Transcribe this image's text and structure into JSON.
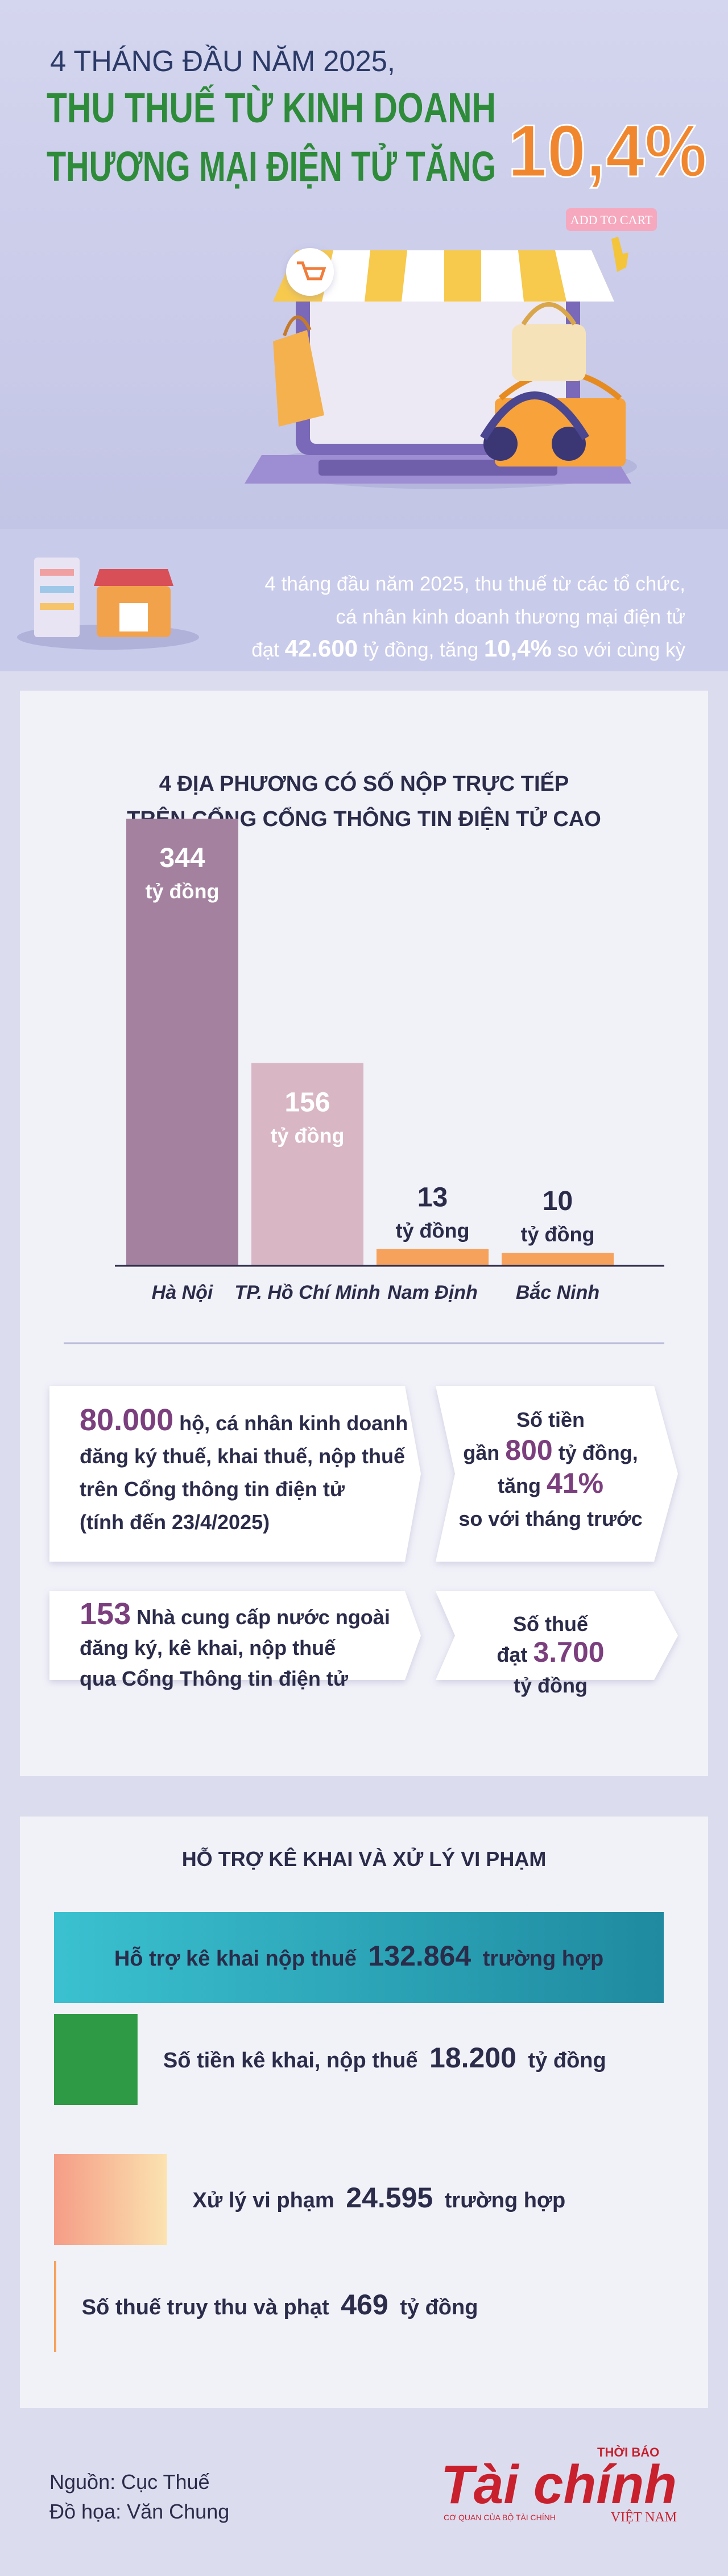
{
  "header": {
    "lines": [
      "4 THÁNG ĐẦU NĂM 2025,",
      "THU THUẾ TỪ KINH DOANH",
      "THƯƠNG MẠI ĐIỆN TỬ TĂNG"
    ],
    "highlight": "10,4%",
    "button": "ADD TO CART"
  },
  "intro": {
    "lines": [
      [
        {
          "text": "4 tháng đầu năm 2025, thu thuế từ các tổ chức,"
        }
      ],
      [
        {
          "text": "cá nhân kinh doanh thương mại điện tử"
        }
      ],
      [
        {
          "text": "đạt "
        },
        {
          "text": "42.600",
          "bold": true
        },
        {
          "text": " tỷ đồng, tăng "
        },
        {
          "text": "10,4%",
          "bold": true
        },
        {
          "text": " so với cùng kỳ"
        }
      ]
    ]
  },
  "chart_data": [
    {
      "type": "bar",
      "title": [
        "4 ĐỊA PHƯƠNG CÓ SỐ NỘP TRỰC TIẾP",
        "TRÊN CỔNG CỔNG THÔNG TIN ĐIỆN TỬ CAO"
      ],
      "categories": [
        "Hà Nội",
        "TP. Hồ Chí Minh",
        "Nam Định",
        "Bắc Ninh"
      ],
      "values": [
        344,
        156,
        13,
        10
      ],
      "unit": "tỷ đồng",
      "colors": [
        "#a4819f",
        "#d9b6c3",
        "#f6a15c",
        "#f6a15c"
      ]
    },
    {
      "type": "hbar",
      "title": "HỖ TRỢ KÊ KHAI VÀ XỬ LÝ VI PHẠM",
      "categories": [
        "Hỗ trợ kê khai nộp thuế",
        "Số tiền kê khai, nộp thuế",
        "Xử lý vi phạm",
        "Số thuế truy thu và phạt"
      ],
      "values": [
        132864,
        18200,
        24595,
        469
      ],
      "value_labels": [
        "132.864",
        "18.200",
        "24.595",
        "469"
      ],
      "units": [
        "trường hợp",
        "tỷ đồng",
        "trường hợp",
        "tỷ đồng"
      ],
      "colors": [
        "#2aa6ba",
        "#2f9a45",
        "#f7b88f",
        "#f6a15c"
      ]
    }
  ],
  "stats": [
    {
      "left": [
        [
          {
            "text": "80.000",
            "bold": true
          },
          {
            "text": " hộ, cá nhân kinh doanh"
          }
        ],
        [
          {
            "text": "đăng ký thuế, khai thuế, nộp thuế"
          }
        ],
        [
          {
            "text": "trên Cổng thông tin điện tử"
          }
        ],
        [
          {
            "text": "(tính đến 23/4/2025)"
          }
        ]
      ],
      "right": [
        [
          {
            "text": "Số tiền"
          }
        ],
        [
          {
            "text": "gần "
          },
          {
            "text": "800",
            "bold": true
          },
          {
            "text": " tỷ đồng,"
          }
        ],
        [
          {
            "text": "tăng "
          },
          {
            "text": "41%",
            "bold": true
          }
        ],
        [
          {
            "text": "so với tháng trước"
          }
        ]
      ]
    },
    {
      "left": [
        [
          {
            "text": "153",
            "bold": true
          },
          {
            "text": " Nhà cung cấp nước ngoài"
          }
        ],
        [
          {
            "text": "đăng ký, kê khai, nộp thuế"
          }
        ],
        [
          {
            "text": "qua Cổng Thông tin điện tử"
          }
        ]
      ],
      "right": [
        [
          {
            "text": "Số thuế"
          }
        ],
        [
          {
            "text": "đạt "
          },
          {
            "text": "3.700",
            "bold": true
          }
        ],
        [
          {
            "text": "tỷ đồng"
          }
        ]
      ]
    }
  ],
  "footer": {
    "source": "Nguồn: Cục Thuế",
    "design": "Đồ họa: Văn Chung",
    "logo": {
      "top": "THỜI BÁO",
      "name": "Tài chính",
      "sub": "CƠ QUAN CỦA BỘ TÀI CHÍNH",
      "bottom": "VIỆT NAM"
    }
  }
}
